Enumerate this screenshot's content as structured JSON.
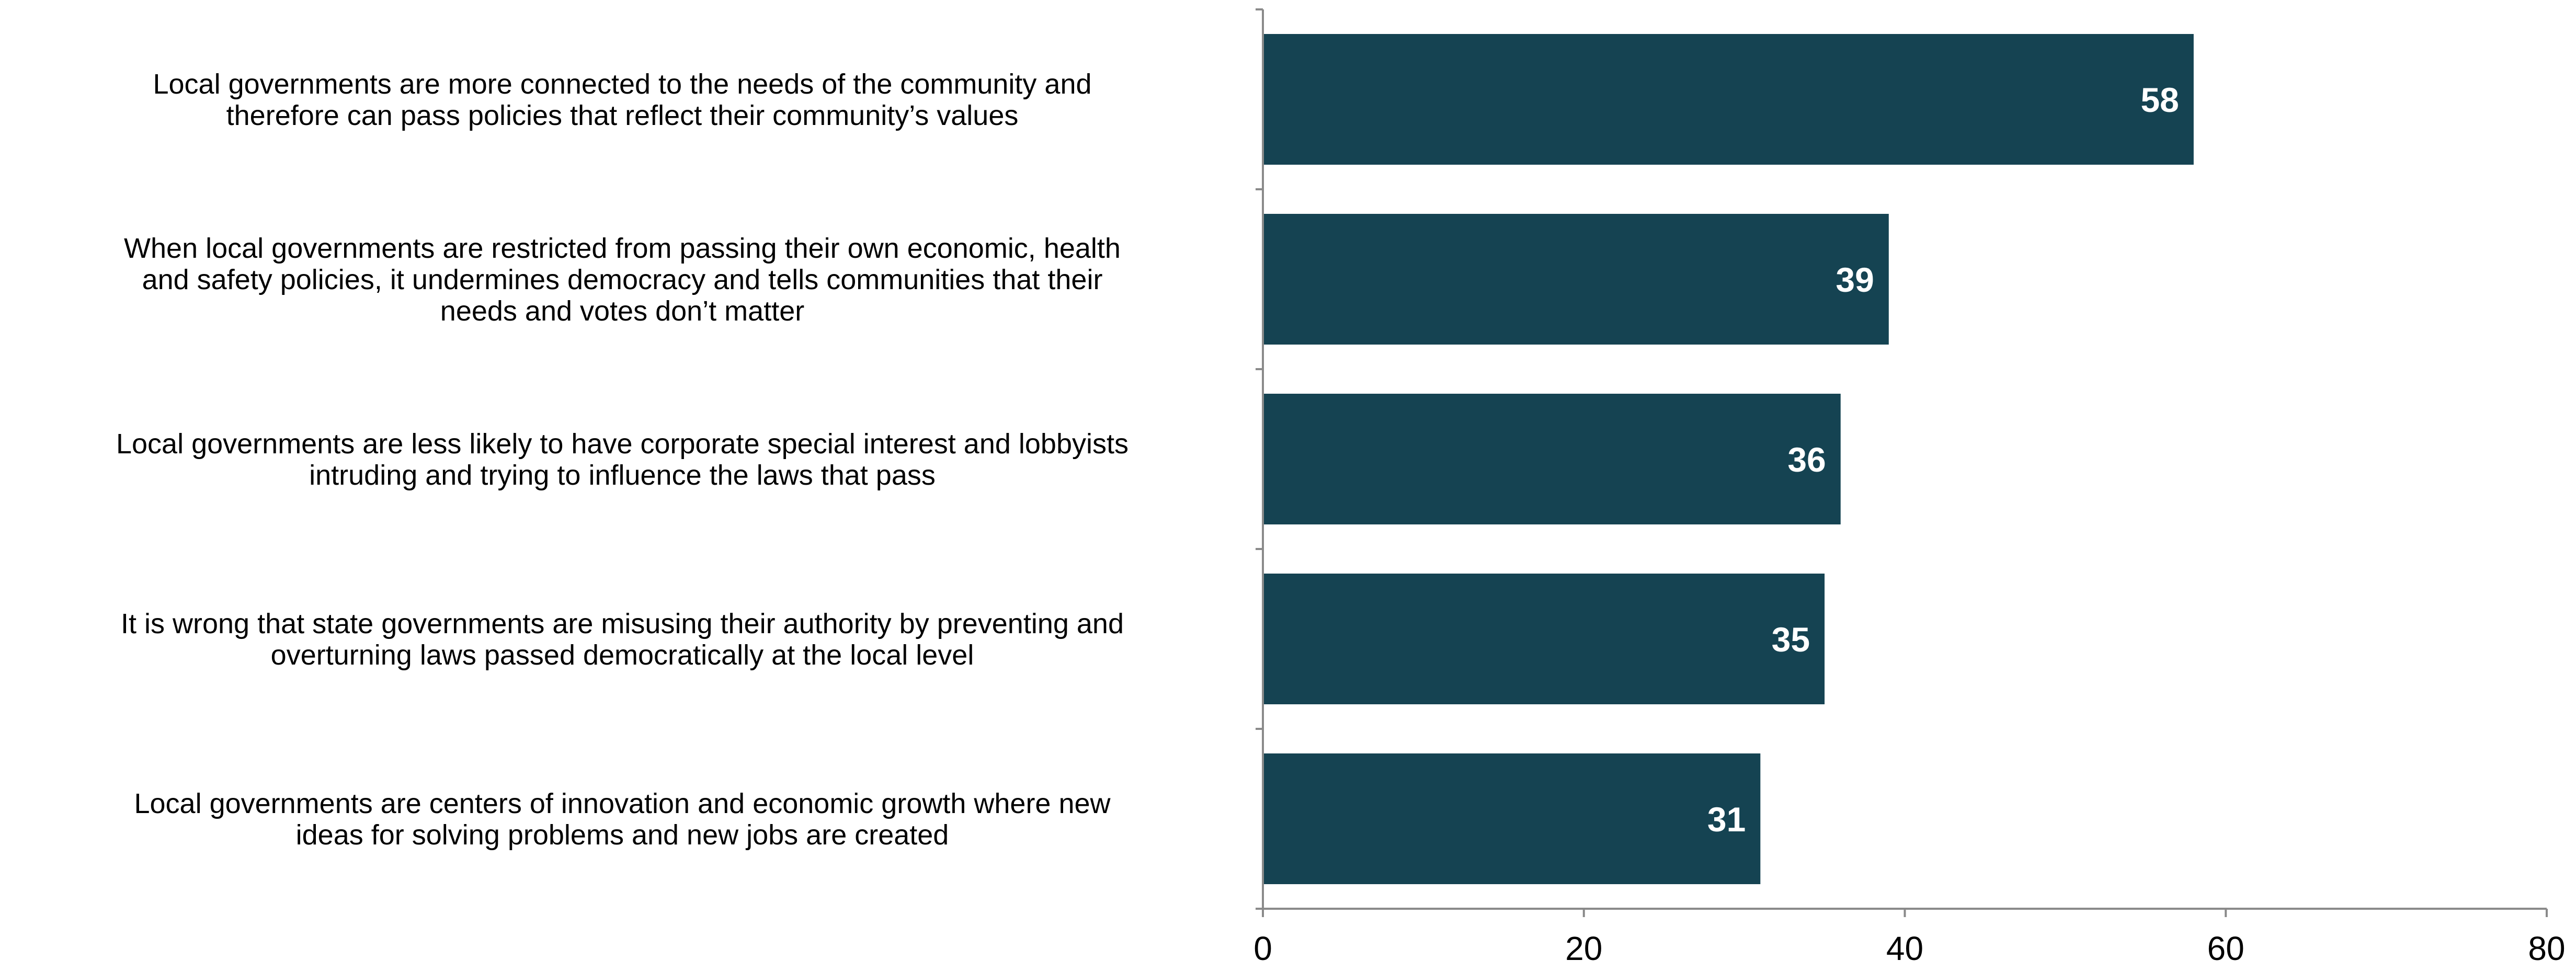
{
  "chart_data": {
    "type": "bar",
    "orientation": "horizontal",
    "title": "",
    "xlabel": "",
    "ylabel": "",
    "xlim": [
      0,
      80
    ],
    "x_ticks": [
      0,
      20,
      40,
      60,
      80
    ],
    "grid": false,
    "legend": "none",
    "data_labels": true,
    "categories": [
      {
        "label": "Local governments are more connected to the needs of the community and therefore can pass policies that reflect their community’s values",
        "lines": [
          "Local governments are more connected to the needs of the community and",
          "therefore can pass policies that reflect their community’s values"
        ]
      },
      {
        "label": "When local governments are restricted from passing their own economic, health and safety policies, it undermines democracy and tells communities that their needs and votes don’t matter",
        "lines": [
          "When local governments are restricted from passing their own economic, health",
          "and safety policies, it undermines democracy and tells communities that their",
          "needs and votes don’t matter"
        ]
      },
      {
        "label": "Local governments are less likely to have corporate special interest and lobbyists intruding and trying to influence the laws that pass",
        "lines": [
          "Local governments are less likely to have corporate special interest and lobbyists",
          "intruding and trying to influence the laws that pass"
        ]
      },
      {
        "label": "It is wrong that state governments are misusing their authority by preventing and overturning laws passed democratically at the local level",
        "lines": [
          "It is wrong that state governments are misusing their authority by preventing and",
          "overturning laws passed democratically at the local level"
        ]
      },
      {
        "label": "Local governments are centers of innovation and economic growth where new ideas for solving problems and new jobs are created",
        "lines": [
          "Local governments are centers of innovation and economic growth where new",
          "ideas for solving problems and new jobs are created"
        ]
      }
    ],
    "values": [
      58,
      39,
      36,
      35,
      31
    ],
    "colors": {
      "bar": "#154352",
      "data_label": "#ffffff",
      "axis": "#8a8a8a",
      "text": "#000000"
    }
  }
}
